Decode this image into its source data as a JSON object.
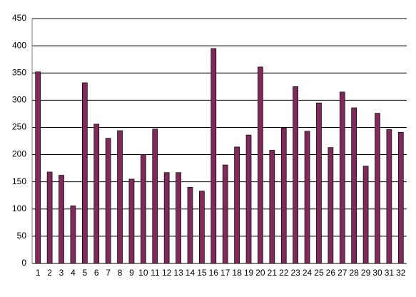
{
  "chart_data": {
    "type": "bar",
    "categories": [
      "1",
      "2",
      "3",
      "4",
      "5",
      "6",
      "7",
      "8",
      "9",
      "10",
      "11",
      "12",
      "13",
      "14",
      "15",
      "16",
      "17",
      "18",
      "19",
      "20",
      "21",
      "22",
      "23",
      "24",
      "25",
      "26",
      "27",
      "28",
      "29",
      "30",
      "31",
      "32"
    ],
    "values": [
      352,
      168,
      162,
      106,
      332,
      256,
      230,
      244,
      155,
      200,
      247,
      167,
      167,
      140,
      133,
      395,
      181,
      214,
      236,
      361,
      208,
      249,
      325,
      243,
      295,
      213,
      315,
      286,
      179,
      276,
      246,
      241
    ],
    "color": "#7f2a5b",
    "ylim": [
      0,
      450
    ],
    "yticks": [
      0,
      50,
      100,
      150,
      200,
      250,
      300,
      350,
      400,
      450
    ],
    "grid": true
  }
}
